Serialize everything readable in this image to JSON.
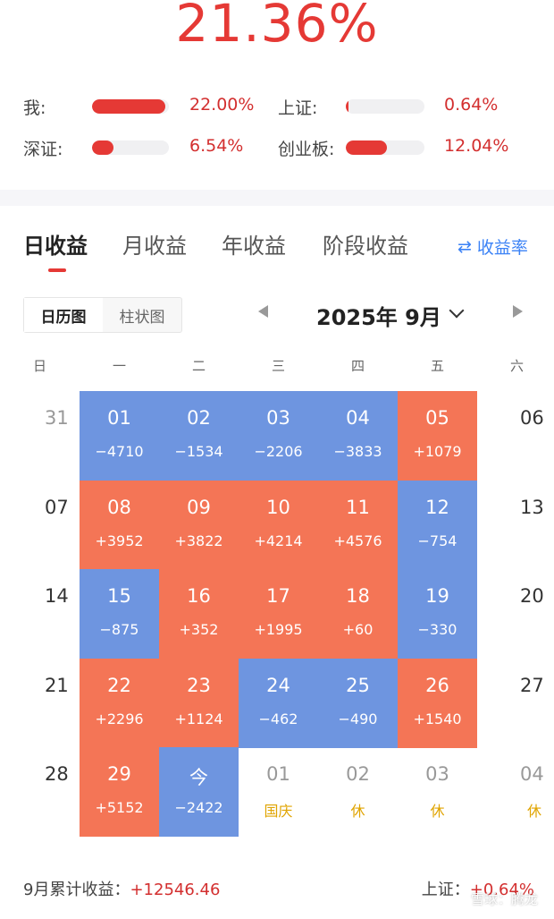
{
  "summary": {
    "total_return": "21.36%"
  },
  "comparison": [
    {
      "label": "我:",
      "value": "22.00%",
      "fill": 0.95
    },
    {
      "label": "上证:",
      "value": "0.64%",
      "fill": 0.02
    },
    {
      "label": "深证:",
      "value": "6.54%",
      "fill": 0.28
    },
    {
      "label": "创业板:",
      "value": "12.04%",
      "fill": 0.52
    }
  ],
  "tabs": [
    "日收益",
    "月收益",
    "年收益",
    "阶段收益"
  ],
  "active_tab": 0,
  "rate_link": {
    "icon": "swap-icon",
    "label": "收益率",
    "glyph": "⇄"
  },
  "view_toggle": [
    "日历图",
    "柱状图"
  ],
  "month_label": "2025年 9月",
  "weekdays": [
    "日",
    "一",
    "二",
    "三",
    "四",
    "五",
    "六"
  ],
  "colors": {
    "gain": "#f47556",
    "loss": "#6e95e0",
    "accent": "#e53935",
    "holiday": "#e0a400"
  },
  "calendar": [
    [
      {
        "d": "31",
        "t": "dim"
      },
      {
        "d": "01",
        "v": "−4710",
        "t": "neg"
      },
      {
        "d": "02",
        "v": "−1534",
        "t": "neg"
      },
      {
        "d": "03",
        "v": "−2206",
        "t": "neg"
      },
      {
        "d": "04",
        "v": "−3833",
        "t": "neg"
      },
      {
        "d": "05",
        "v": "+1079",
        "t": "pos"
      },
      {
        "d": "06",
        "t": "off"
      }
    ],
    [
      {
        "d": "07",
        "t": "off"
      },
      {
        "d": "08",
        "v": "+3952",
        "t": "pos"
      },
      {
        "d": "09",
        "v": "+3822",
        "t": "pos"
      },
      {
        "d": "10",
        "v": "+4214",
        "t": "pos"
      },
      {
        "d": "11",
        "v": "+4576",
        "t": "pos"
      },
      {
        "d": "12",
        "v": "−754",
        "t": "neg"
      },
      {
        "d": "13",
        "t": "off"
      }
    ],
    [
      {
        "d": "14",
        "t": "off"
      },
      {
        "d": "15",
        "v": "−875",
        "t": "neg"
      },
      {
        "d": "16",
        "v": "+352",
        "t": "pos"
      },
      {
        "d": "17",
        "v": "+1995",
        "t": "pos"
      },
      {
        "d": "18",
        "v": "+60",
        "t": "pos"
      },
      {
        "d": "19",
        "v": "−330",
        "t": "neg"
      },
      {
        "d": "20",
        "t": "off"
      }
    ],
    [
      {
        "d": "21",
        "t": "off"
      },
      {
        "d": "22",
        "v": "+2296",
        "t": "pos"
      },
      {
        "d": "23",
        "v": "+1124",
        "t": "pos"
      },
      {
        "d": "24",
        "v": "−462",
        "t": "neg"
      },
      {
        "d": "25",
        "v": "−490",
        "t": "neg"
      },
      {
        "d": "26",
        "v": "+1540",
        "t": "pos"
      },
      {
        "d": "27",
        "t": "off"
      }
    ],
    [
      {
        "d": "28",
        "t": "off"
      },
      {
        "d": "29",
        "v": "+5152",
        "t": "pos"
      },
      {
        "d": "今",
        "v": "−2422",
        "t": "neg"
      },
      {
        "d": "01",
        "v": "国庆",
        "t": "holiday"
      },
      {
        "d": "02",
        "v": "休",
        "t": "holiday"
      },
      {
        "d": "03",
        "v": "休",
        "t": "holiday"
      },
      {
        "d": "04",
        "v": "休",
        "t": "holiday"
      }
    ]
  ],
  "footer": {
    "month_total_label": "9月累计收益：",
    "month_total_value": "+12546.46",
    "index_label": "上证：",
    "index_value": "+0.64%"
  },
  "watermark": "雪球：腾龙"
}
